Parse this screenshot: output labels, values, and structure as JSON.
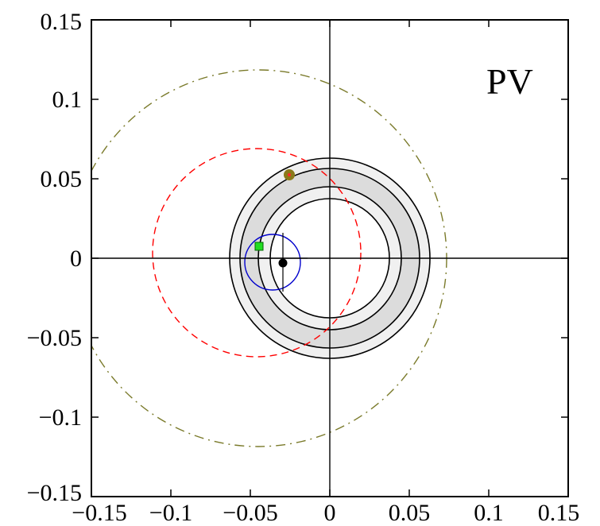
{
  "chart_data": {
    "type": "scatter",
    "title": "",
    "xlabel": "",
    "ylabel": "",
    "xlim": [
      -0.15,
      0.15
    ],
    "ylim": [
      -0.15,
      0.15
    ],
    "grid": false,
    "panel_label": "PV",
    "x_ticks": [
      -0.15,
      -0.1,
      -0.05,
      0,
      0.05,
      0.1,
      0.15
    ],
    "x_tick_labels": [
      "−0.15",
      "−0.1",
      "−0.05",
      "0",
      "0.05",
      "0.1",
      "0.15"
    ],
    "y_ticks": [
      -0.15,
      -0.1,
      -0.05,
      0,
      0.05,
      0.1,
      0.15
    ],
    "y_tick_labels": [
      "−0.15",
      "−0.1",
      "−0.05",
      "0",
      "0.05",
      "0.1",
      "0.15"
    ],
    "annuli": [
      {
        "inner_radius": 0.0375,
        "outer_radius": 0.045,
        "fill": "#f0f0f0"
      },
      {
        "inner_radius": 0.045,
        "outer_radius": 0.0565,
        "fill": "#dcdcdc"
      },
      {
        "inner_radius": 0.0565,
        "outer_radius": 0.063,
        "fill": "#f0f0f0"
      }
    ],
    "circles": [
      {
        "name": "dash-dot",
        "cx": -0.045,
        "cy": 0,
        "r": 0.1185,
        "color": "#7a7a2a",
        "style": "dashdot"
      },
      {
        "name": "dashed",
        "cx": -0.046,
        "cy": 0.0035,
        "r": 0.0655,
        "color": "#ff0000",
        "style": "dashed"
      },
      {
        "name": "solid-small",
        "cx": -0.036,
        "cy": -0.0025,
        "r": 0.0175,
        "color": "#0000cc",
        "style": "solid"
      }
    ],
    "markers": [
      {
        "name": "black-dot",
        "x": -0.0295,
        "y": -0.003,
        "color": "#000000",
        "shape": "circle"
      },
      {
        "name": "olive-dot",
        "x": -0.0255,
        "y": 0.0525,
        "color": "#8a7a1a",
        "shape": "circle"
      },
      {
        "name": "green-square",
        "x": -0.0445,
        "y": 0.0075,
        "color": "#22dd22",
        "shape": "square"
      }
    ]
  }
}
